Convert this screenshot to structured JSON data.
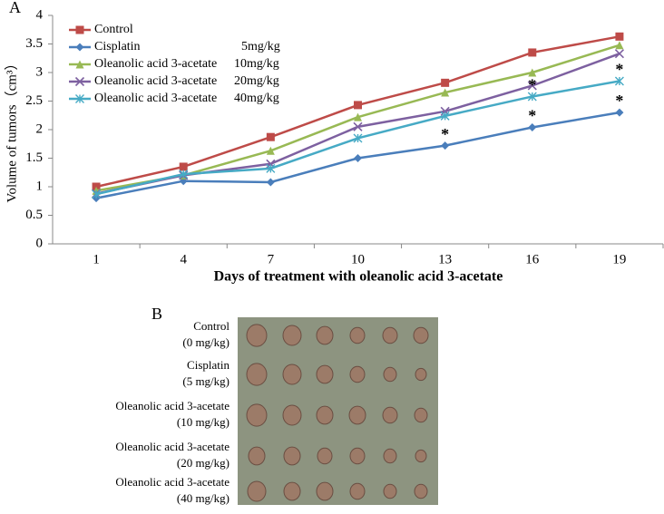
{
  "panel_a": "A",
  "chart_data": {
    "type": "line",
    "x_label": "Days of treatment with oleanolic acid 3-acetate",
    "y_label": "Volume of tumors（cm³）",
    "categories": [
      "1",
      "4",
      "7",
      "10",
      "13",
      "16",
      "19"
    ],
    "ylim": [
      0,
      4
    ],
    "yticks": [
      0,
      0.5,
      1,
      1.5,
      2,
      2.5,
      3,
      3.5,
      4
    ],
    "grid": false,
    "legend": "upper left",
    "series": [
      {
        "name": "Control",
        "color": "#be4b48",
        "marker": "square",
        "values": [
          1.0,
          1.35,
          1.87,
          2.43,
          2.82,
          3.35,
          3.63
        ]
      },
      {
        "name": "Cisplatin",
        "dose": "5mg/kg",
        "color": "#4a7ebb",
        "marker": "diamond",
        "values": [
          0.8,
          1.1,
          1.08,
          1.5,
          1.72,
          2.04,
          2.3
        ],
        "annotations": [
          null,
          null,
          null,
          null,
          "*",
          "*",
          "*"
        ]
      },
      {
        "name": "Oleanolic acid 3-acetate",
        "dose": "10mg/kg",
        "color": "#98b954",
        "marker": "triangle",
        "values": [
          0.93,
          1.2,
          1.63,
          2.22,
          2.65,
          3.0,
          3.48
        ]
      },
      {
        "name": "Oleanolic acid 3-acetate",
        "dose": "20mg/kg",
        "color": "#7d60a0",
        "marker": "x",
        "values": [
          0.88,
          1.2,
          1.4,
          2.05,
          2.32,
          2.77,
          3.33
        ]
      },
      {
        "name": "Oleanolic acid 3-acetate",
        "dose": "40mg/kg",
        "color": "#46aac5",
        "marker": "star",
        "values": [
          0.87,
          1.22,
          1.32,
          1.85,
          2.24,
          2.58,
          2.85
        ],
        "annotations": [
          null,
          null,
          null,
          null,
          null,
          "*",
          "*"
        ]
      }
    ]
  },
  "photo": {
    "panel": "B",
    "rows": [
      {
        "label": "Control",
        "dose": "(0 mg/kg)"
      },
      {
        "label": "Cisplatin",
        "dose": "(5 mg/kg)"
      },
      {
        "label": "Oleanolic acid 3-acetate",
        "dose": "(10 mg/kg)"
      },
      {
        "label": "Oleanolic acid 3-acetate",
        "dose": "(20 mg/kg)"
      },
      {
        "label": "Oleanolic acid 3-acetate",
        "dose": "(40 mg/kg)"
      }
    ]
  }
}
